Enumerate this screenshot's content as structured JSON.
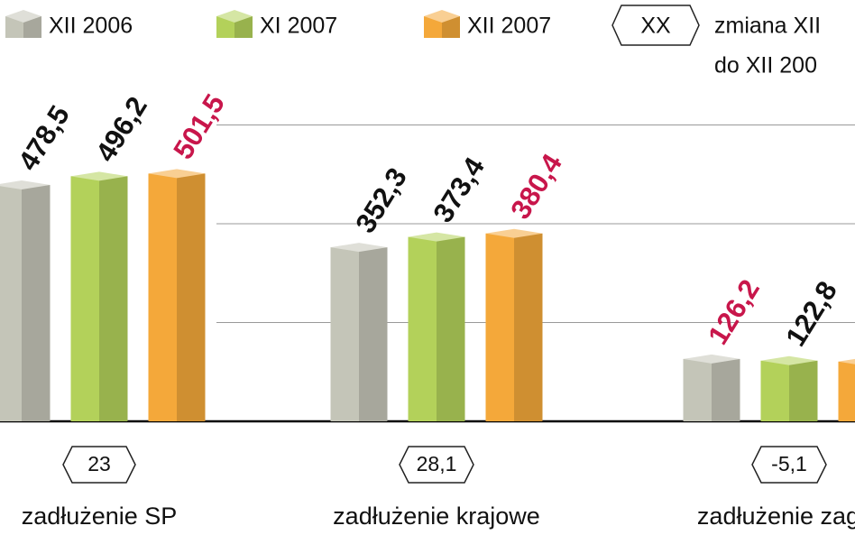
{
  "chart_data": {
    "type": "bar",
    "categories": [
      "zadłużenie SP",
      "zadłużenie krajowe",
      "zadłużenie zagra"
    ],
    "series": [
      {
        "name": "XII 2006",
        "color": "#c4c5b8",
        "values": [
          478.5,
          352.3,
          126.2
        ],
        "value_labels": [
          "478,5",
          "352,3",
          "126,2"
        ],
        "label_colors": [
          "#111",
          "#111",
          "#c8164b"
        ]
      },
      {
        "name": "XI 2007",
        "color": "#b3d15a",
        "values": [
          496.2,
          373.4,
          122.8
        ],
        "value_labels": [
          "496,2",
          "373,4",
          "122,8"
        ],
        "label_colors": [
          "#111",
          "#111",
          "#111"
        ]
      },
      {
        "name": "XII 2007",
        "color": "#f4a83a",
        "values": [
          501.5,
          380.4,
          121
        ],
        "value_labels": [
          "501,5",
          "380,4",
          null
        ],
        "label_colors": [
          "#c8164b",
          "#c8164b",
          "#111"
        ]
      }
    ],
    "change_marker": "XX",
    "change_legend": [
      "zmiana XII",
      "do XII 200"
    ],
    "change_labels": [
      "23",
      "28,1",
      "-5,1"
    ],
    "ylim": [
      0,
      800
    ],
    "yticks": [
      200,
      400,
      600
    ],
    "grid": true
  }
}
